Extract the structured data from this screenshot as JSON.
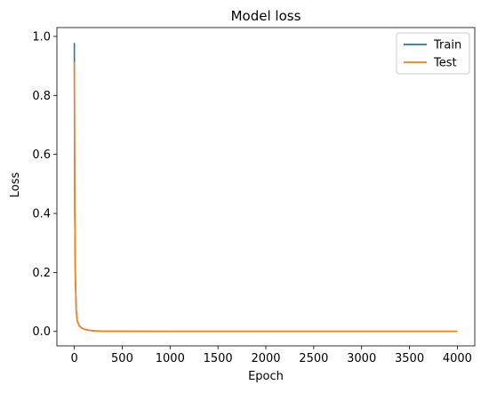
{
  "chart_data": {
    "type": "line",
    "title": "Model loss",
    "xlabel": "Epoch",
    "ylabel": "Loss",
    "xlim": [
      -182,
      4182
    ],
    "ylim": [
      -0.049,
      1.03
    ],
    "xticks": [
      0,
      500,
      1000,
      1500,
      2000,
      2500,
      3000,
      3500,
      4000
    ],
    "yticks": [
      0.0,
      0.2,
      0.4,
      0.6,
      0.8,
      1.0
    ],
    "ytick_labels": [
      "0.0",
      "0.2",
      "0.4",
      "0.6",
      "0.8",
      "1.0"
    ],
    "grid": false,
    "legend_position": "top-right",
    "series": [
      {
        "name": "Train",
        "color": "#1f77b4",
        "x": [
          0,
          1,
          3,
          5,
          10,
          20,
          30,
          50,
          75,
          100,
          150,
          200,
          300,
          500,
          1000,
          2000,
          3000,
          4000
        ],
        "y": [
          0.978,
          0.85,
          0.6,
          0.4,
          0.2,
          0.07,
          0.037,
          0.02,
          0.012,
          0.008,
          0.004,
          0.002,
          0.001,
          0.0005,
          0.0002,
          0.0001,
          0.0001,
          0.0001
        ]
      },
      {
        "name": "Test",
        "color": "#ff7f0e",
        "x": [
          0,
          1,
          3,
          5,
          10,
          20,
          30,
          50,
          75,
          100,
          150,
          200,
          300,
          500,
          1000,
          2000,
          3000,
          4000
        ],
        "y": [
          0.913,
          0.8,
          0.58,
          0.39,
          0.19,
          0.068,
          0.036,
          0.02,
          0.012,
          0.008,
          0.004,
          0.002,
          0.001,
          0.0005,
          0.0002,
          0.0001,
          0.0001,
          0.0001
        ]
      }
    ]
  }
}
